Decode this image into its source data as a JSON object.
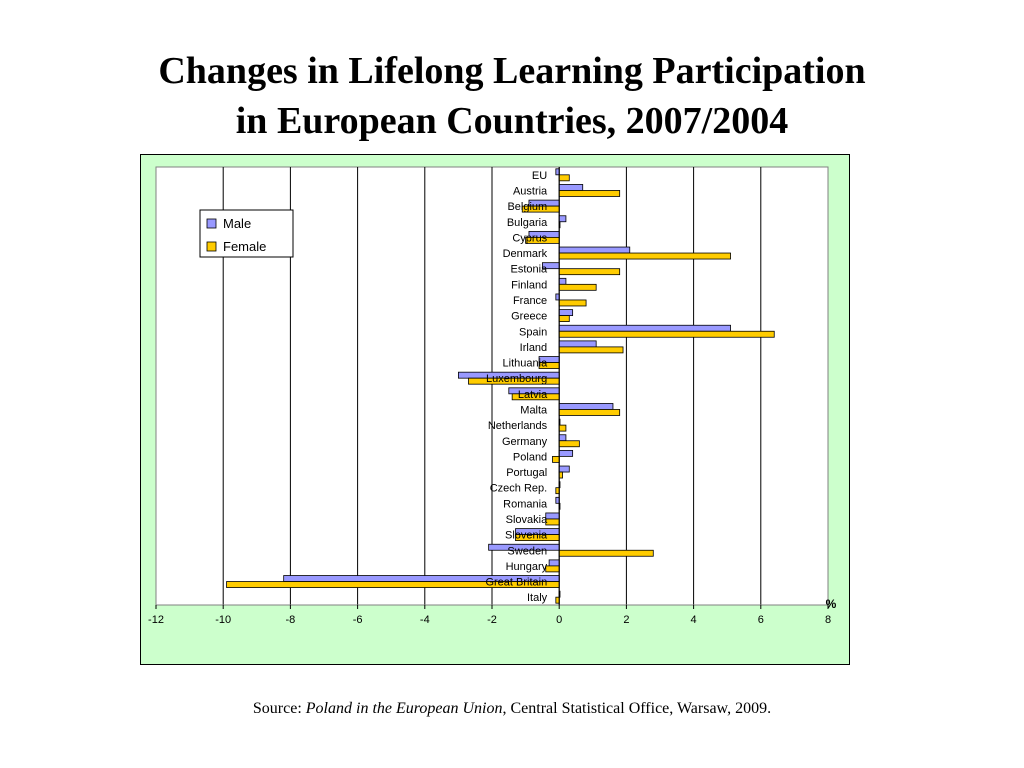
{
  "title_line1": "Changes in Lifelong Learning Participation",
  "title_line2": "in European Countries, 2007/2004",
  "source": {
    "prefix": "Source: ",
    "publication": "Poland in the European Union",
    "suffix": ", Central Statistical Office, Warsaw, 2009."
  },
  "colors": {
    "male": "#9999ff",
    "female": "#ffcc00",
    "frame_background": "#ccffcc",
    "plot_background": "#ffffff"
  },
  "chart_data": {
    "type": "bar",
    "orientation": "horizontal",
    "categories": [
      "EU",
      "Austria",
      "Belgium",
      "Bulgaria",
      "Cyprus",
      "Denmark",
      "Estonia",
      "Finland",
      "France",
      "Greece",
      "Spain",
      "Irland",
      "Lithuania",
      "Luxembourg",
      "Latvia",
      "Malta",
      "Netherlands",
      "Germany",
      "Poland",
      "Portugal",
      "Czech Rep.",
      "Romania",
      "Slovakia",
      "Slovenia",
      "Sweden",
      "Hungary",
      "Great Britain",
      "Italy"
    ],
    "series": [
      {
        "name": "Male",
        "values": [
          -0.1,
          0.7,
          -0.9,
          0.2,
          -0.9,
          2.1,
          -0.5,
          0.2,
          -0.1,
          0.4,
          5.1,
          1.1,
          -0.6,
          -3.0,
          -1.5,
          1.6,
          0.0,
          0.2,
          0.4,
          0.3,
          0.0,
          -0.1,
          -0.4,
          -1.3,
          -2.1,
          -0.3,
          -8.2,
          0.0
        ]
      },
      {
        "name": "Female",
        "values": [
          0.3,
          1.8,
          -1.1,
          0.0,
          -1.0,
          5.1,
          1.8,
          1.1,
          0.8,
          0.3,
          6.4,
          1.9,
          -0.6,
          -2.7,
          -1.4,
          1.8,
          0.2,
          0.6,
          -0.2,
          0.1,
          -0.1,
          0.0,
          -0.4,
          -1.3,
          2.8,
          -0.4,
          -9.9,
          -0.1
        ]
      }
    ],
    "x_ticks": [
      "-12",
      "-10",
      "-8",
      "-6",
      "-4",
      "-2",
      "0",
      "2",
      "4",
      "6",
      "8"
    ],
    "xlim": [
      -12,
      8
    ],
    "x_unit": "%",
    "grid": true,
    "legend": {
      "position": "top-left",
      "entries": [
        "Male",
        "Female"
      ]
    }
  }
}
